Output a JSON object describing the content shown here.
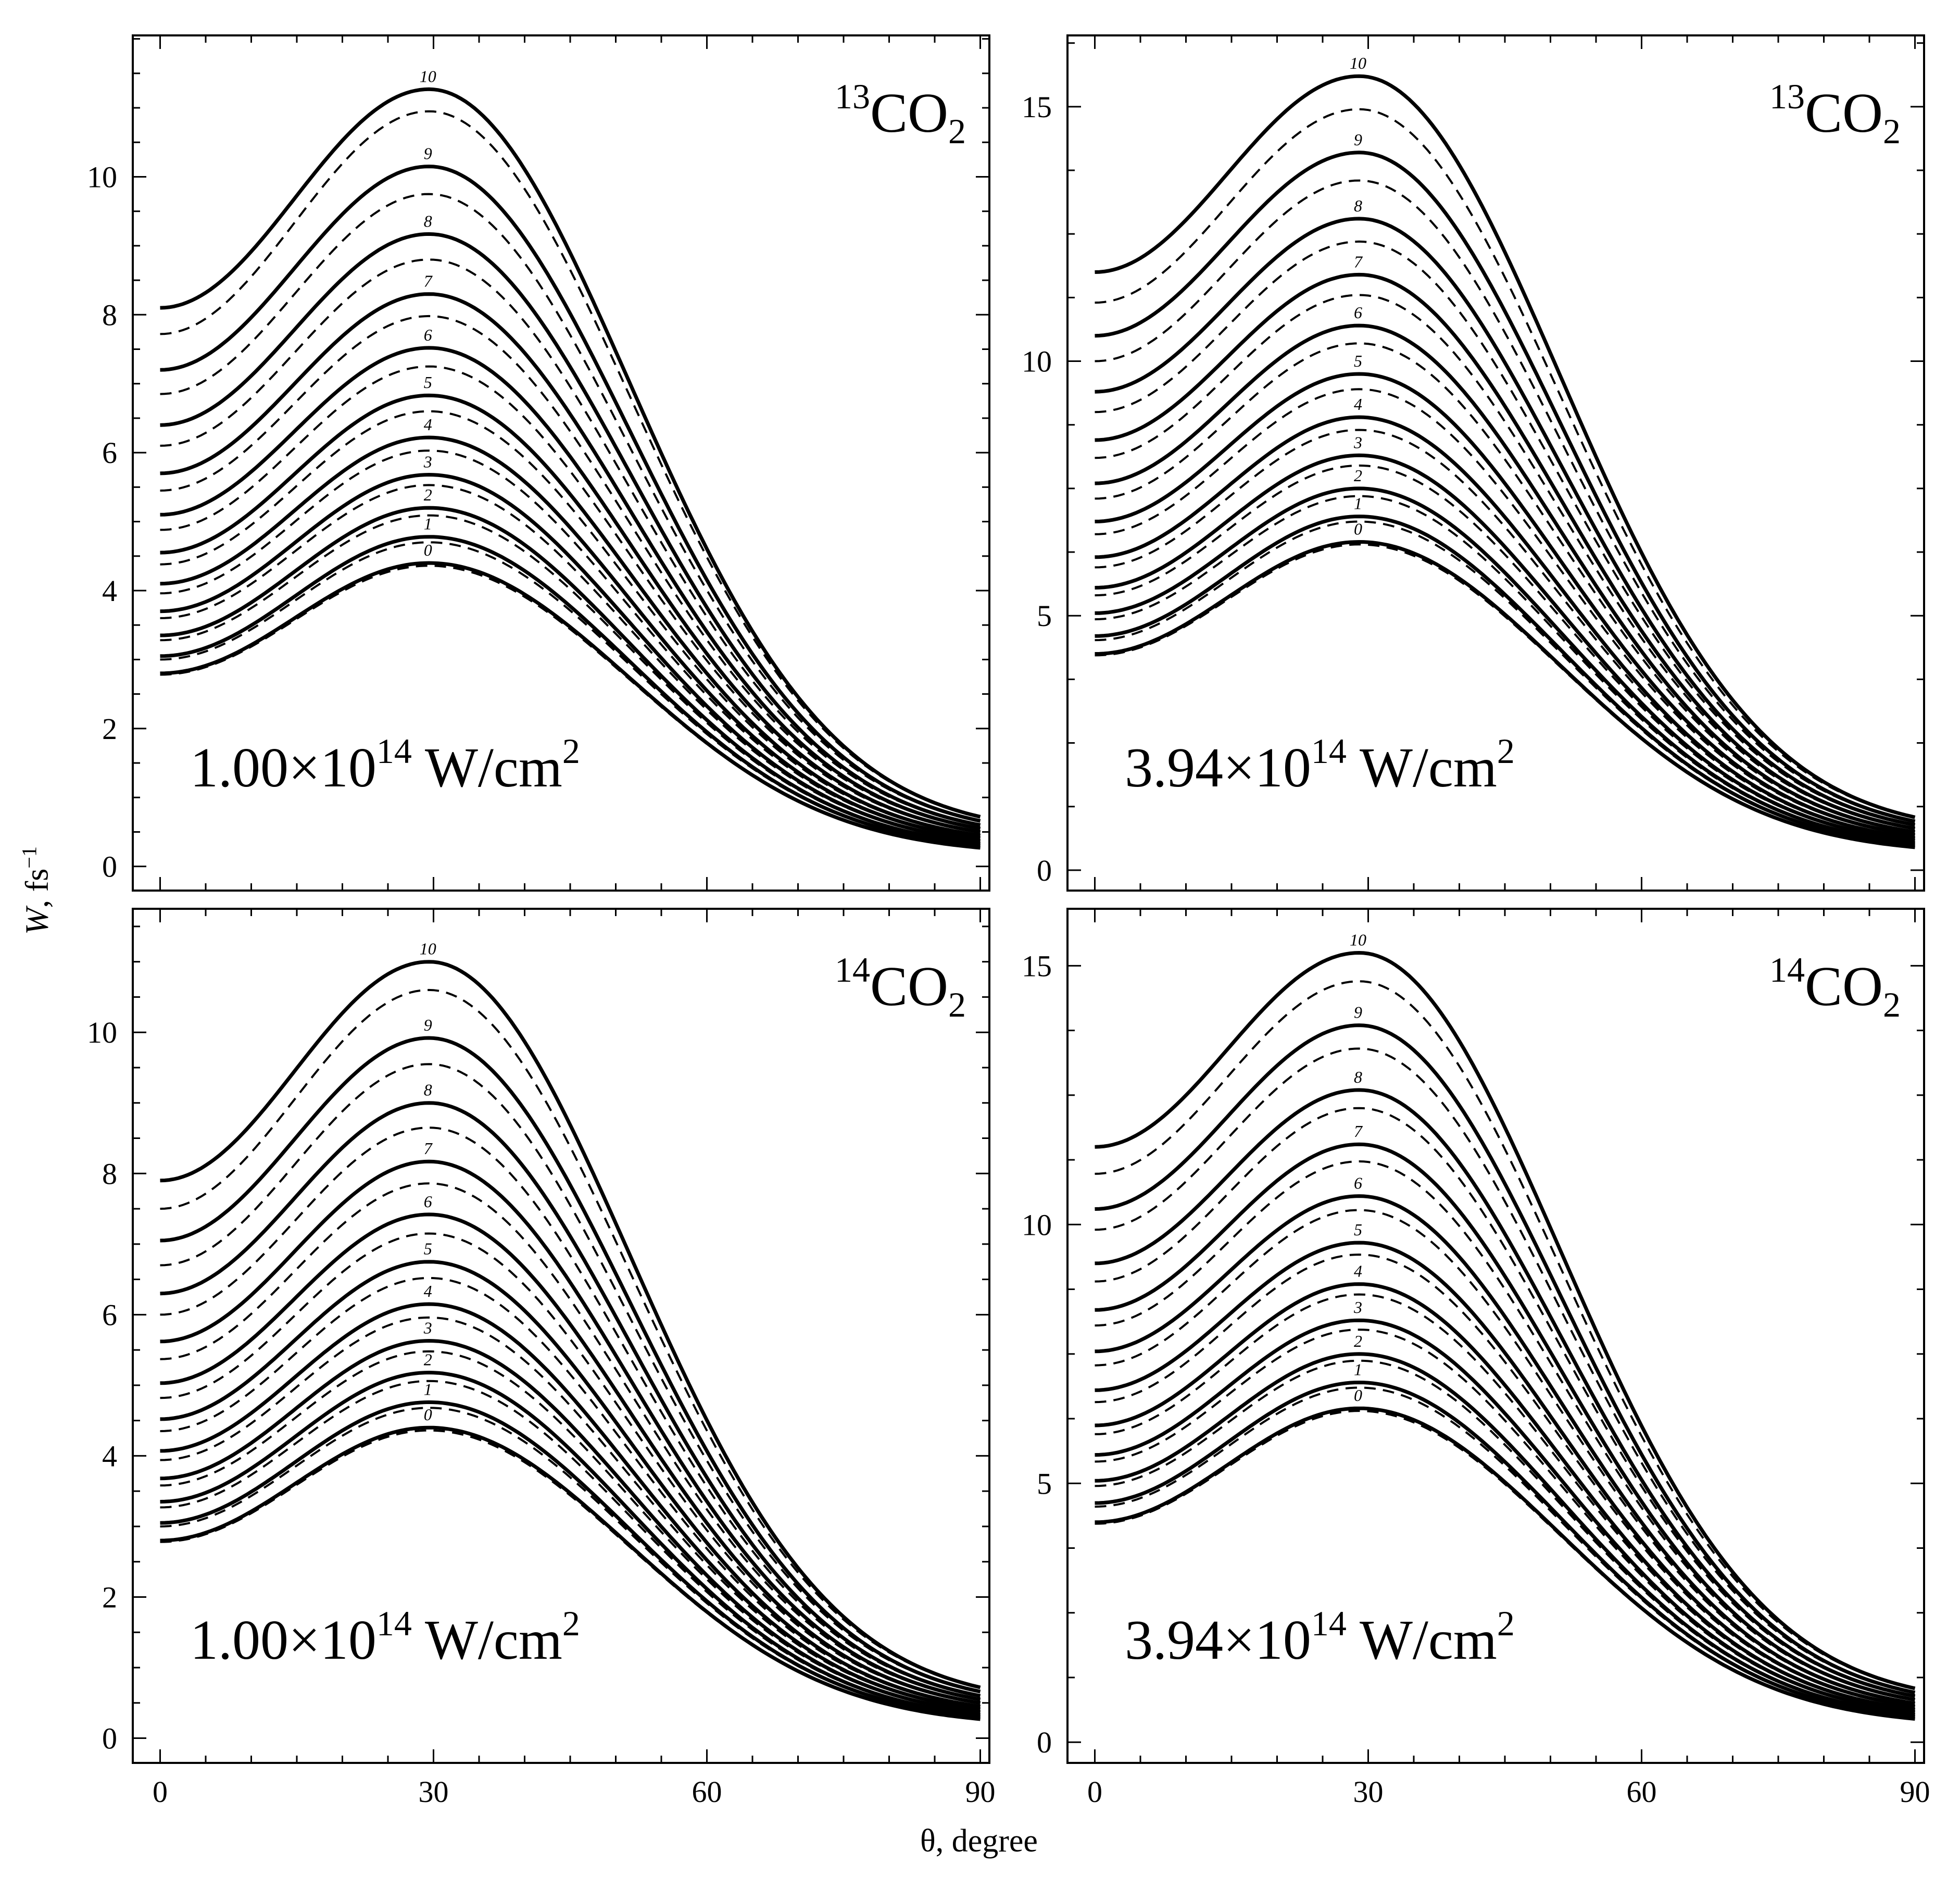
{
  "figure": {
    "x_axis_label": "θ, degree",
    "y_axis_label_symbol": "W",
    "y_axis_label_unit": ", fs",
    "y_axis_label_exponent": "−1"
  },
  "chart_data": [
    {
      "type": "line",
      "panel": "top-left",
      "molecule_prefix": "13",
      "molecule": "CO",
      "molecule_sub": "2",
      "intensity_mantissa": "1.00×10",
      "intensity_exponent": "14",
      "intensity_unit": " W/cm",
      "intensity_unit_exponent": "2",
      "xlim": [
        -3,
        91
      ],
      "ylim": [
        -0.35,
        12.05
      ],
      "xticks": [
        0,
        30,
        60,
        90
      ],
      "yticks": [
        0,
        2,
        4,
        6,
        8,
        10
      ],
      "x_tick_labels": [
        "0",
        "30",
        "60",
        "90"
      ],
      "y_tick_labels": [
        "0",
        "2",
        "4",
        "6",
        "8",
        "10"
      ],
      "peak_theta": 29.5,
      "curve_labels": [
        "0",
        "1",
        "2",
        "3",
        "4",
        "5",
        "6",
        "7",
        "8",
        "9",
        "10"
      ],
      "solid_series": [
        {
          "name": "0",
          "w0": 2.8,
          "wpeak": 4.4,
          "w90": 0.27
        },
        {
          "name": "1",
          "w0": 3.05,
          "wpeak": 4.78,
          "w90": 0.3
        },
        {
          "name": "2",
          "w0": 3.35,
          "wpeak": 5.2,
          "w90": 0.33
        },
        {
          "name": "3",
          "w0": 3.7,
          "wpeak": 5.68,
          "w90": 0.37
        },
        {
          "name": "4",
          "w0": 4.1,
          "wpeak": 6.22,
          "w90": 0.41
        },
        {
          "name": "5",
          "w0": 4.55,
          "wpeak": 6.83,
          "w90": 0.45
        },
        {
          "name": "6",
          "w0": 5.1,
          "wpeak": 7.52,
          "w90": 0.5
        },
        {
          "name": "7",
          "w0": 5.7,
          "wpeak": 8.3,
          "w90": 0.55
        },
        {
          "name": "8",
          "w0": 6.4,
          "wpeak": 9.17,
          "w90": 0.6
        },
        {
          "name": "9",
          "w0": 7.2,
          "wpeak": 10.15,
          "w90": 0.66
        },
        {
          "name": "10",
          "w0": 8.1,
          "wpeak": 11.27,
          "w90": 0.72
        }
      ],
      "dashed_series": [
        {
          "name": "0",
          "w0": 2.78,
          "wpeak": 4.36,
          "w90": 0.27
        },
        {
          "name": "1",
          "w0": 3.0,
          "wpeak": 4.7,
          "w90": 0.3
        },
        {
          "name": "2",
          "w0": 3.28,
          "wpeak": 5.09,
          "w90": 0.33
        },
        {
          "name": "3",
          "w0": 3.6,
          "wpeak": 5.53,
          "w90": 0.37
        },
        {
          "name": "4",
          "w0": 3.96,
          "wpeak": 6.03,
          "w90": 0.41
        },
        {
          "name": "5",
          "w0": 4.38,
          "wpeak": 6.6,
          "w90": 0.45
        },
        {
          "name": "6",
          "w0": 4.88,
          "wpeak": 7.25,
          "w90": 0.5
        },
        {
          "name": "7",
          "w0": 5.45,
          "wpeak": 7.98,
          "w90": 0.55
        },
        {
          "name": "8",
          "w0": 6.1,
          "wpeak": 8.8,
          "w90": 0.6
        },
        {
          "name": "9",
          "w0": 6.85,
          "wpeak": 9.75,
          "w90": 0.66
        },
        {
          "name": "10",
          "w0": 7.72,
          "wpeak": 10.95,
          "w90": 0.72
        }
      ]
    },
    {
      "type": "line",
      "panel": "top-right",
      "molecule_prefix": "13",
      "molecule": "CO",
      "molecule_sub": "2",
      "intensity_mantissa": "3.94×10",
      "intensity_exponent": "14",
      "intensity_unit": " W/cm",
      "intensity_unit_exponent": "2",
      "xlim": [
        -3,
        91
      ],
      "ylim": [
        -0.4,
        16.4
      ],
      "xticks": [
        0,
        30,
        60,
        90
      ],
      "yticks": [
        0,
        5,
        10,
        15
      ],
      "x_tick_labels": [
        "0",
        "30",
        "60",
        "90"
      ],
      "y_tick_labels": [
        "0",
        "5",
        "10",
        "15"
      ],
      "peak_theta": 29,
      "curve_labels": [
        "0",
        "1",
        "2",
        "3",
        "4",
        "5",
        "6",
        "7",
        "8",
        "9",
        "10"
      ],
      "solid_series": [
        {
          "name": "0",
          "w0": 4.25,
          "wpeak": 6.45,
          "w90": 0.45
        },
        {
          "name": "1",
          "w0": 4.6,
          "wpeak": 6.95,
          "w90": 0.49
        },
        {
          "name": "2",
          "w0": 5.05,
          "wpeak": 7.5,
          "w90": 0.53
        },
        {
          "name": "3",
          "w0": 5.55,
          "wpeak": 8.15,
          "w90": 0.58
        },
        {
          "name": "4",
          "w0": 6.15,
          "wpeak": 8.9,
          "w90": 0.63
        },
        {
          "name": "5",
          "w0": 6.85,
          "wpeak": 9.75,
          "w90": 0.69
        },
        {
          "name": "6",
          "w0": 7.6,
          "wpeak": 10.7,
          "w90": 0.75
        },
        {
          "name": "7",
          "w0": 8.45,
          "wpeak": 11.7,
          "w90": 0.82
        },
        {
          "name": "8",
          "w0": 9.4,
          "wpeak": 12.8,
          "w90": 0.89
        },
        {
          "name": "9",
          "w0": 10.5,
          "wpeak": 14.1,
          "w90": 0.96
        },
        {
          "name": "10",
          "w0": 11.75,
          "wpeak": 15.6,
          "w90": 1.04
        }
      ],
      "dashed_series": [
        {
          "name": "0",
          "w0": 4.22,
          "wpeak": 6.4,
          "w90": 0.45
        },
        {
          "name": "1",
          "w0": 4.52,
          "wpeak": 6.85,
          "w90": 0.49
        },
        {
          "name": "2",
          "w0": 4.93,
          "wpeak": 7.35,
          "w90": 0.53
        },
        {
          "name": "3",
          "w0": 5.4,
          "wpeak": 7.95,
          "w90": 0.58
        },
        {
          "name": "4",
          "w0": 5.95,
          "wpeak": 8.65,
          "w90": 0.63
        },
        {
          "name": "5",
          "w0": 6.6,
          "wpeak": 9.45,
          "w90": 0.69
        },
        {
          "name": "6",
          "w0": 7.3,
          "wpeak": 10.35,
          "w90": 0.75
        },
        {
          "name": "7",
          "w0": 8.1,
          "wpeak": 11.3,
          "w90": 0.82
        },
        {
          "name": "8",
          "w0": 9.0,
          "wpeak": 12.35,
          "w90": 0.89
        },
        {
          "name": "9",
          "w0": 10.0,
          "wpeak": 13.55,
          "w90": 0.96
        },
        {
          "name": "10",
          "w0": 11.15,
          "wpeak": 14.95,
          "w90": 1.04
        }
      ]
    },
    {
      "type": "line",
      "panel": "bottom-left",
      "molecule_prefix": "14",
      "molecule": "CO",
      "molecule_sub": "2",
      "intensity_mantissa": "1.00×10",
      "intensity_exponent": "14",
      "intensity_unit": " W/cm",
      "intensity_unit_exponent": "2",
      "xlim": [
        -3,
        91
      ],
      "ylim": [
        -0.35,
        11.75
      ],
      "xticks": [
        0,
        30,
        60,
        90
      ],
      "yticks": [
        0,
        2,
        4,
        6,
        8,
        10
      ],
      "x_tick_labels": [
        "0",
        "30",
        "60",
        "90"
      ],
      "y_tick_labels": [
        "0",
        "2",
        "4",
        "6",
        "8",
        "10"
      ],
      "peak_theta": 29.5,
      "curve_labels": [
        "0",
        "1",
        "2",
        "3",
        "4",
        "5",
        "6",
        "7",
        "8",
        "9",
        "10"
      ],
      "solid_series": [
        {
          "name": "0",
          "w0": 2.8,
          "wpeak": 4.4,
          "w90": 0.27
        },
        {
          "name": "1",
          "w0": 3.05,
          "wpeak": 4.76,
          "w90": 0.3
        },
        {
          "name": "2",
          "w0": 3.35,
          "wpeak": 5.18,
          "w90": 0.33
        },
        {
          "name": "3",
          "w0": 3.68,
          "wpeak": 5.63,
          "w90": 0.37
        },
        {
          "name": "4",
          "w0": 4.07,
          "wpeak": 6.15,
          "w90": 0.41
        },
        {
          "name": "5",
          "w0": 4.52,
          "wpeak": 6.75,
          "w90": 0.45
        },
        {
          "name": "6",
          "w0": 5.03,
          "wpeak": 7.42,
          "w90": 0.5
        },
        {
          "name": "7",
          "w0": 5.62,
          "wpeak": 8.17,
          "w90": 0.55
        },
        {
          "name": "8",
          "w0": 6.3,
          "wpeak": 9.0,
          "w90": 0.6
        },
        {
          "name": "9",
          "w0": 7.05,
          "wpeak": 9.92,
          "w90": 0.66
        },
        {
          "name": "10",
          "w0": 7.9,
          "wpeak": 11.0,
          "w90": 0.72
        }
      ],
      "dashed_series": [
        {
          "name": "0",
          "w0": 2.78,
          "wpeak": 4.36,
          "w90": 0.27
        },
        {
          "name": "1",
          "w0": 3.0,
          "wpeak": 4.68,
          "w90": 0.3
        },
        {
          "name": "2",
          "w0": 3.27,
          "wpeak": 5.06,
          "w90": 0.33
        },
        {
          "name": "3",
          "w0": 3.58,
          "wpeak": 5.48,
          "w90": 0.37
        },
        {
          "name": "4",
          "w0": 3.94,
          "wpeak": 5.96,
          "w90": 0.41
        },
        {
          "name": "5",
          "w0": 4.35,
          "wpeak": 6.52,
          "w90": 0.45
        },
        {
          "name": "6",
          "w0": 4.82,
          "wpeak": 7.15,
          "w90": 0.5
        },
        {
          "name": "7",
          "w0": 5.37,
          "wpeak": 7.86,
          "w90": 0.55
        },
        {
          "name": "8",
          "w0": 6.0,
          "wpeak": 8.65,
          "w90": 0.6
        },
        {
          "name": "9",
          "w0": 6.7,
          "wpeak": 9.55,
          "w90": 0.66
        },
        {
          "name": "10",
          "w0": 7.5,
          "wpeak": 10.6,
          "w90": 0.72
        }
      ]
    },
    {
      "type": "line",
      "panel": "bottom-right",
      "molecule_prefix": "14",
      "molecule": "CO",
      "molecule_sub": "2",
      "intensity_mantissa": "3.94×10",
      "intensity_exponent": "14",
      "intensity_unit": " W/cm",
      "intensity_unit_exponent": "2",
      "xlim": [
        -3,
        91
      ],
      "ylim": [
        -0.4,
        16.1
      ],
      "xticks": [
        0,
        30,
        60,
        90
      ],
      "yticks": [
        0,
        5,
        10,
        15
      ],
      "x_tick_labels": [
        "0",
        "30",
        "60",
        "90"
      ],
      "y_tick_labels": [
        "0",
        "5",
        "10",
        "15"
      ],
      "peak_theta": 29,
      "curve_labels": [
        "0",
        "1",
        "2",
        "3",
        "4",
        "5",
        "6",
        "7",
        "8",
        "9",
        "10"
      ],
      "solid_series": [
        {
          "name": "0",
          "w0": 4.25,
          "wpeak": 6.45,
          "w90": 0.45
        },
        {
          "name": "1",
          "w0": 4.62,
          "wpeak": 6.95,
          "w90": 0.49
        },
        {
          "name": "2",
          "w0": 5.05,
          "wpeak": 7.5,
          "w90": 0.53
        },
        {
          "name": "3",
          "w0": 5.55,
          "wpeak": 8.15,
          "w90": 0.58
        },
        {
          "name": "4",
          "w0": 6.12,
          "wpeak": 8.85,
          "w90": 0.63
        },
        {
          "name": "5",
          "w0": 6.8,
          "wpeak": 9.65,
          "w90": 0.69
        },
        {
          "name": "6",
          "w0": 7.55,
          "wpeak": 10.55,
          "w90": 0.75
        },
        {
          "name": "7",
          "w0": 8.35,
          "wpeak": 11.55,
          "w90": 0.82
        },
        {
          "name": "8",
          "w0": 9.25,
          "wpeak": 12.6,
          "w90": 0.89
        },
        {
          "name": "9",
          "w0": 10.3,
          "wpeak": 13.85,
          "w90": 0.96
        },
        {
          "name": "10",
          "w0": 11.5,
          "wpeak": 15.25,
          "w90": 1.04
        }
      ],
      "dashed_series": [
        {
          "name": "0",
          "w0": 4.22,
          "wpeak": 6.4,
          "w90": 0.45
        },
        {
          "name": "1",
          "w0": 4.55,
          "wpeak": 6.85,
          "w90": 0.49
        },
        {
          "name": "2",
          "w0": 4.95,
          "wpeak": 7.37,
          "w90": 0.53
        },
        {
          "name": "3",
          "w0": 5.42,
          "wpeak": 7.97,
          "w90": 0.58
        },
        {
          "name": "4",
          "w0": 5.95,
          "wpeak": 8.65,
          "w90": 0.63
        },
        {
          "name": "5",
          "w0": 6.57,
          "wpeak": 9.42,
          "w90": 0.69
        },
        {
          "name": "6",
          "w0": 7.28,
          "wpeak": 10.28,
          "w90": 0.75
        },
        {
          "name": "7",
          "w0": 8.05,
          "wpeak": 11.22,
          "w90": 0.82
        },
        {
          "name": "8",
          "w0": 8.9,
          "wpeak": 12.25,
          "w90": 0.89
        },
        {
          "name": "9",
          "w0": 9.9,
          "wpeak": 13.4,
          "w90": 0.96
        },
        {
          "name": "10",
          "w0": 10.98,
          "wpeak": 14.7,
          "w90": 1.04
        }
      ]
    }
  ]
}
